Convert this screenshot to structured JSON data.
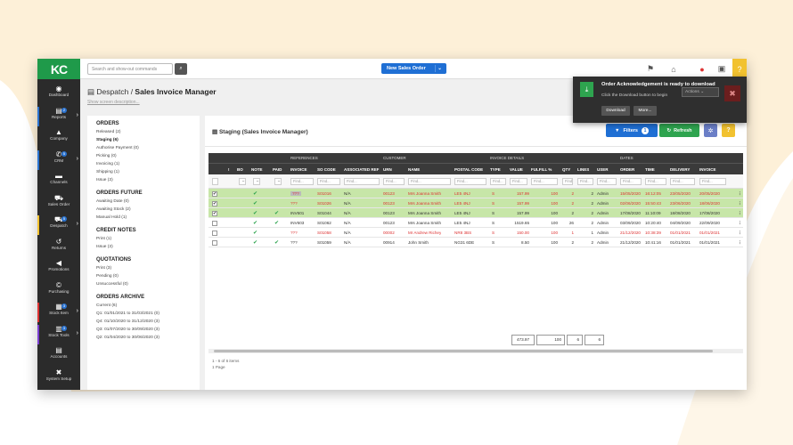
{
  "colors": {
    "brand": "#1f9a4a",
    "accent": "#1f6fd4",
    "sidebar": "#2b2b2b",
    "warning": "#f2c230",
    "blob": "#fdf0d8"
  },
  "topbar": {
    "logo": "KC",
    "search_placeholder": "Search and show-out commands",
    "new_order_label": "New Sales Order"
  },
  "sidebar": {
    "items": [
      {
        "label": "Dashboard",
        "icon": "dashboard-icon",
        "glyph": "◉",
        "badge": ""
      },
      {
        "label": "Reports",
        "icon": "reports-icon",
        "glyph": "▤",
        "badge": "2"
      },
      {
        "label": "Company",
        "icon": "company-icon",
        "glyph": "▲",
        "badge": ""
      },
      {
        "label": "CRM",
        "icon": "phone-icon",
        "glyph": "✆",
        "badge": "5"
      },
      {
        "label": "Channels",
        "icon": "channels-icon",
        "glyph": "▬",
        "badge": ""
      },
      {
        "label": "Sales Order",
        "icon": "cart-icon",
        "glyph": "⛟",
        "badge": ""
      },
      {
        "label": "Despatch",
        "icon": "truck-icon",
        "glyph": "⛟",
        "badge": "5"
      },
      {
        "label": "Returns",
        "icon": "returns-icon",
        "glyph": "↺",
        "badge": ""
      },
      {
        "label": "Promotions",
        "icon": "megaphone-icon",
        "glyph": "◀",
        "badge": ""
      },
      {
        "label": "Purchasing",
        "icon": "purchasing-icon",
        "glyph": "©",
        "badge": ""
      },
      {
        "label": "Stock Item",
        "icon": "stock-item-icon",
        "glyph": "▦",
        "badge": "3"
      },
      {
        "label": "Stock Tools",
        "icon": "stock-tools-icon",
        "glyph": "▥",
        "badge": "3"
      },
      {
        "label": "Accounts",
        "icon": "accounts-icon",
        "glyph": "▤",
        "badge": ""
      },
      {
        "label": "System Setup",
        "icon": "wrench-icon",
        "glyph": "✖",
        "badge": ""
      }
    ]
  },
  "page": {
    "breadcrumb": "Despatch",
    "title": "Sales Invoice Manager",
    "show_description": "Show screen description..."
  },
  "left_panel": {
    "groups": [
      {
        "heading": "ORDERS",
        "items": [
          "Released (2)",
          "Staging (6)",
          "Authorise Payment (0)",
          "Picking (0)",
          "Invoicing (1)",
          "Shipping (1)",
          "Issue (3)"
        ],
        "active": 1
      },
      {
        "heading": "ORDERS FUTURE",
        "items": [
          "Awaiting Date (0)",
          "Awaiting Stock (2)",
          "Manual Hold (1)"
        ],
        "active": -1
      },
      {
        "heading": "CREDIT NOTES",
        "items": [
          "Print (1)",
          "Issue (3)"
        ],
        "active": -1
      },
      {
        "heading": "QUOTATIONS",
        "items": [
          "Print (3)",
          "Pending (0)",
          "Unsuccessful (0)"
        ],
        "active": -1
      },
      {
        "heading": "ORDERS ARCHIVE",
        "items": [
          "Current (6)",
          "Q1: 01/01/2021 to 31/03/2021 (0)",
          "Q4: 01/10/2020 to 31/12/2020 (3)",
          "Q3: 01/07/2020 to 30/09/2020 (3)",
          "Q2: 01/04/2020 to 30/06/2020 (3)"
        ],
        "active": -1
      }
    ]
  },
  "main": {
    "title": "Staging (Sales Invoice Manager)",
    "filters_label": "Filters",
    "filters_count": "1",
    "refresh_label": "Refresh",
    "help_label": "?",
    "group_headers": [
      "REFERENCES",
      "CUSTOMER",
      "INVOICE DETAILS",
      "DATES"
    ],
    "columns": [
      "!",
      "BO",
      "NOTE",
      "PAID",
      "INVOICE",
      "SO CODE",
      "ASSOCIATED REF",
      "URN",
      "NAME",
      "POSTAL CODE",
      "TYPE",
      "VALUE",
      "FULFILL %",
      "QTY",
      "LINES",
      "USER",
      "ORDER",
      "TIME",
      "DELIVERY",
      "INVOICE"
    ],
    "filter_placeholders": [
      "Find...",
      "Find...",
      "Find...",
      "Find...",
      "Find...",
      "Find...",
      "Find...",
      "Find...",
      "Find...",
      "Find...",
      "Find...",
      "Find...",
      "Find...",
      "Find...",
      "Find...",
      "Find..."
    ],
    "rows": [
      {
        "style": "green",
        "checked": "✔",
        "note": "✔",
        "paid": "",
        "invoice": "???",
        "so": "S01016",
        "ref": "N/A",
        "urn": "00123",
        "name": "Mrs Joanna Smith",
        "postal": "LE5 4NJ",
        "type": "S",
        "value": "157.99",
        "fulfill": "100",
        "qty": "2",
        "lines": "2",
        "user": "Admin",
        "order": "15/05/2020",
        "time": "16:12:05",
        "delivery": "23/05/2020",
        "inv": "20/05/2020",
        "red": true
      },
      {
        "style": "green",
        "checked": "✔",
        "note": "✔",
        "paid": "",
        "invoice": "???",
        "so": "S01026",
        "ref": "N/A",
        "urn": "00123",
        "name": "Mrs Joanna Smith",
        "postal": "LE5 4NJ",
        "type": "S",
        "value": "157.99",
        "fulfill": "100",
        "qty": "2",
        "lines": "2",
        "user": "Admin",
        "order": "02/06/2020",
        "time": "15:50:43",
        "delivery": "23/06/2020",
        "inv": "18/06/2020",
        "red": true
      },
      {
        "style": "green",
        "checked": "✔",
        "note": "✔",
        "paid": "✔",
        "invoice": "INV601",
        "so": "S01044",
        "ref": "N/A",
        "urn": "00123",
        "name": "Mrs Joanna Smith",
        "postal": "LE5 4NJ",
        "type": "S",
        "value": "157.99",
        "fulfill": "100",
        "qty": "2",
        "lines": "2",
        "user": "Admin",
        "order": "17/08/2020",
        "time": "11:10:09",
        "delivery": "18/08/2020",
        "inv": "17/08/2020",
        "red": false
      },
      {
        "style": "white",
        "checked": "",
        "note": "✔",
        "paid": "✔",
        "invoice": "INV603",
        "so": "S01062",
        "ref": "N/A",
        "urn": "00123",
        "name": "Mrs Joanna Smith",
        "postal": "LE5 4NJ",
        "type": "S",
        "value": "1519.65",
        "fulfill": "100",
        "qty": "26",
        "lines": "2",
        "user": "Admin",
        "order": "03/09/2020",
        "time": "10:20:40",
        "delivery": "04/09/2020",
        "inv": "22/09/2020",
        "red": false
      },
      {
        "style": "white",
        "checked": "",
        "note": "✔",
        "paid": "",
        "invoice": "???",
        "so": "S01058",
        "ref": "N/A",
        "urn": "00002",
        "name": "Mr Andrew Richey",
        "postal": "NR8 3BS",
        "type": "S",
        "value": "150.00",
        "fulfill": "100",
        "qty": "1",
        "lines": "1",
        "user": "Admin",
        "order": "21/12/2020",
        "time": "10:38:39",
        "delivery": "01/01/2021",
        "inv": "01/01/2021",
        "red": true
      },
      {
        "style": "white",
        "checked": "",
        "note": "✔",
        "paid": "✔",
        "invoice": "???",
        "so": "S01059",
        "ref": "N/A",
        "urn": "00914",
        "name": "John Smith",
        "postal": "NG31 6DE",
        "type": "S",
        "value": "8.50",
        "fulfill": "100",
        "qty": "2",
        "lines": "2",
        "user": "Admin",
        "order": "21/12/2020",
        "time": "10:41:16",
        "delivery": "01/01/2021",
        "inv": "01/01/2021",
        "red": false
      }
    ],
    "totals": {
      "value": "473.97",
      "fulfill": "100",
      "qty": "6",
      "lines": "6"
    },
    "pager_items": "1 - 6 of 6 items",
    "pager_page": "1 Page"
  },
  "toast": {
    "title": "Order Acknowledgement is ready to download",
    "message": "Click the Download button to begin",
    "download_label": "Download",
    "more_label": "More...",
    "actions_label": "Actions"
  }
}
